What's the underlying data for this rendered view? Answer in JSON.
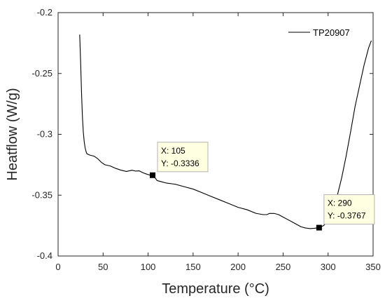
{
  "chart_data": {
    "type": "line",
    "title": "",
    "xlabel": "Temperature (°C)",
    "ylabel": "Heatflow (W/g)",
    "xlim": [
      0,
      350
    ],
    "ylim": [
      -0.4,
      -0.2
    ],
    "x_ticks": [
      0,
      50,
      100,
      150,
      200,
      250,
      300,
      350
    ],
    "y_ticks": [
      -0.4,
      -0.35,
      -0.3,
      -0.25,
      -0.2
    ],
    "grid": false,
    "legend_position": "top-right",
    "series": [
      {
        "name": "TP20907",
        "color": "#000000",
        "x": [
          24,
          25,
          26,
          27,
          28,
          29,
          30,
          31,
          32,
          35,
          40,
          44,
          48,
          52,
          58,
          64,
          70,
          76,
          82,
          86,
          90,
          94,
          98,
          102,
          105,
          108,
          110,
          115,
          120,
          130,
          140,
          150,
          160,
          170,
          180,
          190,
          200,
          210,
          220,
          228,
          232,
          235,
          240,
          245,
          250,
          255,
          260,
          265,
          270,
          275,
          280,
          285,
          290,
          295,
          300,
          305,
          310,
          315,
          320,
          325,
          330,
          335,
          340,
          345,
          348
        ],
        "y": [
          -0.218,
          -0.24,
          -0.265,
          -0.285,
          -0.298,
          -0.306,
          -0.311,
          -0.314,
          -0.316,
          -0.317,
          -0.318,
          -0.32,
          -0.323,
          -0.325,
          -0.326,
          -0.328,
          -0.3295,
          -0.3305,
          -0.3295,
          -0.3302,
          -0.33,
          -0.3315,
          -0.3326,
          -0.3335,
          -0.3336,
          -0.336,
          -0.338,
          -0.339,
          -0.34,
          -0.341,
          -0.343,
          -0.345,
          -0.348,
          -0.351,
          -0.354,
          -0.357,
          -0.36,
          -0.362,
          -0.365,
          -0.366,
          -0.366,
          -0.365,
          -0.365,
          -0.366,
          -0.368,
          -0.37,
          -0.372,
          -0.374,
          -0.376,
          -0.377,
          -0.3775,
          -0.3772,
          -0.3767,
          -0.375,
          -0.371,
          -0.363,
          -0.351,
          -0.336,
          -0.318,
          -0.298,
          -0.277,
          -0.26,
          -0.243,
          -0.229,
          -0.223
        ]
      }
    ],
    "annotations": [
      {
        "x": 105,
        "y": -0.3336,
        "line1": "X: 105",
        "line2": "Y: -0.3336"
      },
      {
        "x": 290,
        "y": -0.3767,
        "line1": "X: 290",
        "line2": "Y: -0.3767"
      }
    ]
  }
}
